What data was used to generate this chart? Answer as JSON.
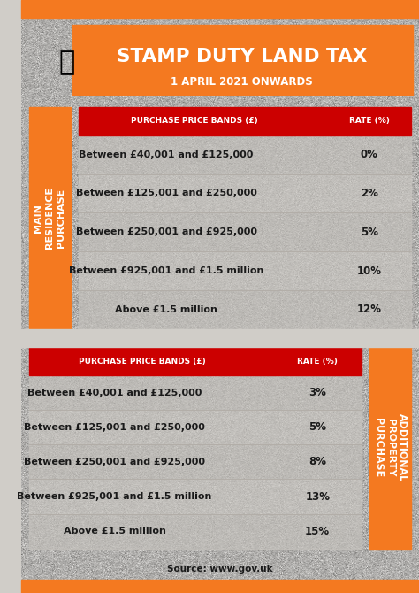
{
  "title": "STAMP DUTY LAND TAX",
  "subtitle": "1 APRIL 2021 ONWARDS",
  "orange": "#F47920",
  "red": "#CC0000",
  "dark_text": "#1a1a1a",
  "white": "#FFFFFF",
  "header_text": "PURCHASE PRICE BANDS (£)",
  "header_rate": "RATE (%)",
  "main_label": "MAIN\nRESIDENCE\nPURCHASE",
  "additional_label": "ADDITIONAL\nPROPERTY\nPURCHASE",
  "source": "Source: www.gov.uk",
  "main_rows": [
    [
      "Between £40,001 and £125,000",
      "0%"
    ],
    [
      "Between £125,001 and £250,000",
      "2%"
    ],
    [
      "Between £250,001 and £925,000",
      "5%"
    ],
    [
      "Between £925,001 and £1.5 million",
      "10%"
    ],
    [
      "Above £1.5 million",
      "12%"
    ]
  ],
  "additional_rows": [
    [
      "Between £40,001 and £125,000",
      "3%"
    ],
    [
      "Between £125,001 and £250,000",
      "5%"
    ],
    [
      "Between £250,001 and £925,000",
      "8%"
    ],
    [
      "Between £925,001 and £1.5 million",
      "13%"
    ],
    [
      "Above £1.5 million",
      "15%"
    ]
  ]
}
